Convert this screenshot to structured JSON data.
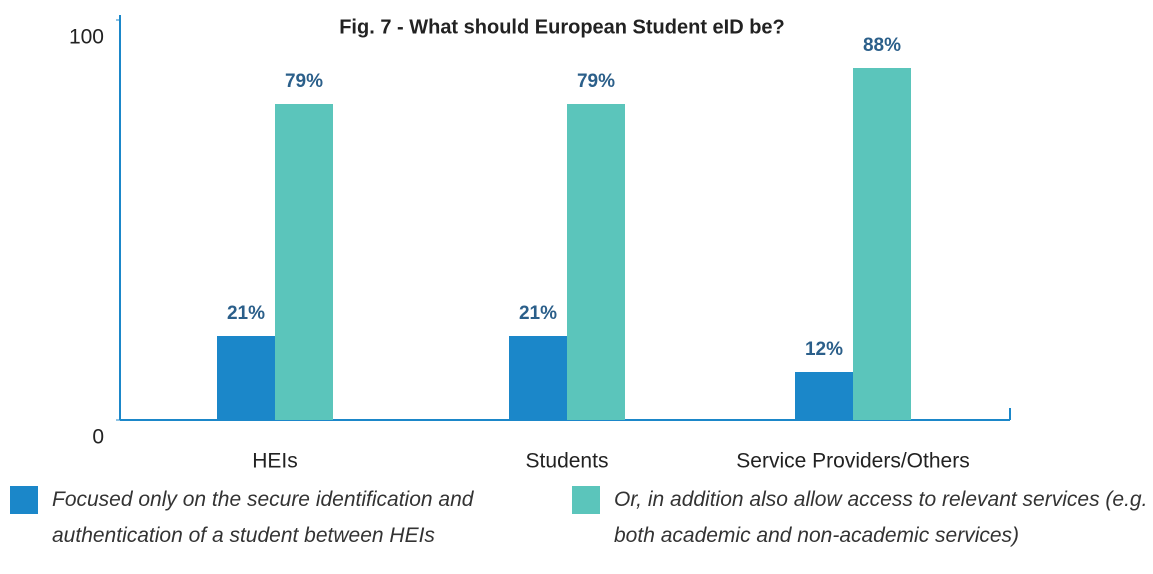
{
  "chart_data": {
    "type": "bar",
    "title": "Fig. 7 - What should European Student eID be?",
    "categories": [
      "HEIs",
      "Students",
      "Service Providers/Others"
    ],
    "series": [
      {
        "name": "Focused only on the secure identification and authentication of a student between HEIs",
        "color": "#1b87c9",
        "values": [
          21,
          21,
          12
        ],
        "value_labels": [
          "21%",
          "21%",
          "12%"
        ]
      },
      {
        "name": "Or, in addition also allow access to relevant services (e.g. both academic and non-academic services)",
        "color": "#5bc5bb",
        "values": [
          79,
          79,
          88
        ],
        "value_labels": [
          "79%",
          "79%",
          "88%"
        ]
      }
    ],
    "ylim": [
      0,
      100
    ],
    "yticks": [
      0,
      100
    ],
    "grid": false
  }
}
